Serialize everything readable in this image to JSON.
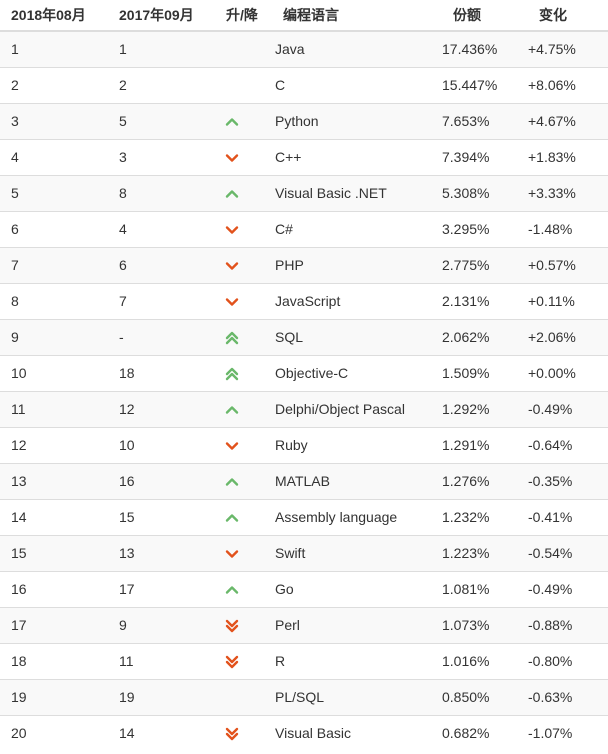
{
  "colors": {
    "up": "#6ab86a",
    "down": "#e2521c",
    "border": "#dddddd",
    "stripe": "#f9f9f9",
    "text": "#333333"
  },
  "table": {
    "headers": {
      "rank_now": "2018年08月",
      "rank_prev": "2017年09月",
      "change": "升/降",
      "language": "编程语言",
      "share": "份额",
      "delta": "变化"
    },
    "rows": [
      {
        "rank_now": "1",
        "rank_prev": "1",
        "trend": "none",
        "language": "Java",
        "share": "17.436%",
        "delta": "+4.75%"
      },
      {
        "rank_now": "2",
        "rank_prev": "2",
        "trend": "none",
        "language": "C",
        "share": "15.447%",
        "delta": "+8.06%"
      },
      {
        "rank_now": "3",
        "rank_prev": "5",
        "trend": "up",
        "language": "Python",
        "share": "7.653%",
        "delta": "+4.67%"
      },
      {
        "rank_now": "4",
        "rank_prev": "3",
        "trend": "down",
        "language": "C++",
        "share": "7.394%",
        "delta": "+1.83%"
      },
      {
        "rank_now": "5",
        "rank_prev": "8",
        "trend": "up",
        "language": "Visual Basic .NET",
        "share": "5.308%",
        "delta": "+3.33%"
      },
      {
        "rank_now": "6",
        "rank_prev": "4",
        "trend": "down",
        "language": "C#",
        "share": "3.295%",
        "delta": "-1.48%"
      },
      {
        "rank_now": "7",
        "rank_prev": "6",
        "trend": "down",
        "language": "PHP",
        "share": "2.775%",
        "delta": "+0.57%"
      },
      {
        "rank_now": "8",
        "rank_prev": "7",
        "trend": "down",
        "language": "JavaScript",
        "share": "2.131%",
        "delta": "+0.11%"
      },
      {
        "rank_now": "9",
        "rank_prev": "-",
        "trend": "up2",
        "language": "SQL",
        "share": "2.062%",
        "delta": "+2.06%"
      },
      {
        "rank_now": "10",
        "rank_prev": "18",
        "trend": "up2",
        "language": "Objective-C",
        "share": "1.509%",
        "delta": "+0.00%"
      },
      {
        "rank_now": "11",
        "rank_prev": "12",
        "trend": "up",
        "language": "Delphi/Object Pascal",
        "share": "1.292%",
        "delta": "-0.49%"
      },
      {
        "rank_now": "12",
        "rank_prev": "10",
        "trend": "down",
        "language": "Ruby",
        "share": "1.291%",
        "delta": "-0.64%"
      },
      {
        "rank_now": "13",
        "rank_prev": "16",
        "trend": "up",
        "language": "MATLAB",
        "share": "1.276%",
        "delta": "-0.35%"
      },
      {
        "rank_now": "14",
        "rank_prev": "15",
        "trend": "up",
        "language": "Assembly language",
        "share": "1.232%",
        "delta": "-0.41%"
      },
      {
        "rank_now": "15",
        "rank_prev": "13",
        "trend": "down",
        "language": "Swift",
        "share": "1.223%",
        "delta": "-0.54%"
      },
      {
        "rank_now": "16",
        "rank_prev": "17",
        "trend": "up",
        "language": "Go",
        "share": "1.081%",
        "delta": "-0.49%"
      },
      {
        "rank_now": "17",
        "rank_prev": "9",
        "trend": "down2",
        "language": "Perl",
        "share": "1.073%",
        "delta": "-0.88%"
      },
      {
        "rank_now": "18",
        "rank_prev": "11",
        "trend": "down2",
        "language": "R",
        "share": "1.016%",
        "delta": "-0.80%"
      },
      {
        "rank_now": "19",
        "rank_prev": "19",
        "trend": "none",
        "language": "PL/SQL",
        "share": "0.850%",
        "delta": "-0.63%"
      },
      {
        "rank_now": "20",
        "rank_prev": "14",
        "trend": "down2",
        "language": "Visual Basic",
        "share": "0.682%",
        "delta": "-1.07%"
      }
    ]
  }
}
